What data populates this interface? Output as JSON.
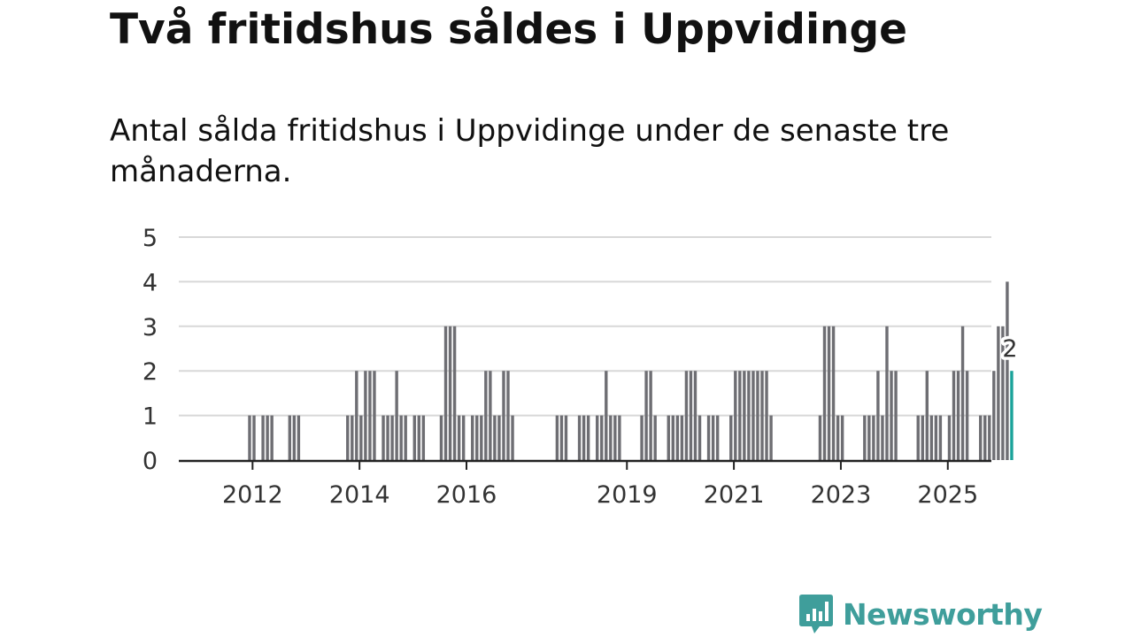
{
  "title": "Två fritidshus såldes i Uppvidinge",
  "subtitle": "Antal sålda fritidshus i Uppvidinge under de senaste tre månaderna.",
  "brand": {
    "name": "Newsworthy",
    "color": "#3f9e9b",
    "icon": "bar-chart-speech-bubble-icon"
  },
  "colors": {
    "bar": "#6e6e73",
    "highlight": "#1aa39a",
    "grid": "#d8d8d8",
    "axis": "#222222"
  },
  "chart_data": {
    "type": "bar",
    "title": "Två fritidshus såldes i Uppvidinge",
    "xlabel": "",
    "ylabel": "",
    "ylim": [
      0,
      5
    ],
    "yticks": [
      "0",
      "1",
      "2",
      "3",
      "4",
      "5"
    ],
    "x_start_year_fraction": 2011.25,
    "period_months": 1,
    "xticks": [
      {
        "label": "2012",
        "year": 2012
      },
      {
        "label": "2014",
        "year": 2014
      },
      {
        "label": "2016",
        "year": 2016
      },
      {
        "label": "2019",
        "year": 2019
      },
      {
        "label": "2021",
        "year": 2021
      },
      {
        "label": "2023",
        "year": 2023
      },
      {
        "label": "2025",
        "year": 2025
      }
    ],
    "values": [
      0,
      0,
      0,
      0,
      0,
      0,
      0,
      0,
      1,
      1,
      0,
      1,
      1,
      1,
      0,
      0,
      0,
      1,
      1,
      1,
      0,
      0,
      0,
      0,
      0,
      0,
      0,
      0,
      0,
      0,
      1,
      1,
      2,
      1,
      2,
      2,
      2,
      0,
      1,
      1,
      1,
      2,
      1,
      1,
      0,
      1,
      1,
      1,
      0,
      0,
      0,
      1,
      3,
      3,
      3,
      1,
      1,
      0,
      1,
      1,
      1,
      2,
      2,
      1,
      1,
      2,
      2,
      1,
      0,
      0,
      0,
      0,
      0,
      0,
      0,
      0,
      0,
      1,
      1,
      1,
      0,
      0,
      1,
      1,
      1,
      0,
      1,
      1,
      2,
      1,
      1,
      1,
      0,
      0,
      0,
      0,
      1,
      2,
      2,
      1,
      0,
      0,
      1,
      1,
      1,
      1,
      2,
      2,
      2,
      1,
      0,
      1,
      1,
      1,
      0,
      0,
      1,
      2,
      2,
      2,
      2,
      2,
      2,
      2,
      2,
      1,
      0,
      0,
      0,
      0,
      0,
      0,
      0,
      0,
      0,
      0,
      1,
      3,
      3,
      3,
      1,
      1,
      0,
      0,
      0,
      0,
      1,
      1,
      1,
      2,
      1,
      3,
      2,
      2,
      0,
      0,
      0,
      0,
      1,
      1,
      2,
      1,
      1,
      1,
      0,
      1,
      2,
      2,
      3,
      2,
      0,
      0,
      1,
      1,
      1,
      2,
      3,
      3,
      4,
      2
    ],
    "highlight_last": true,
    "last_value_label": "2"
  }
}
